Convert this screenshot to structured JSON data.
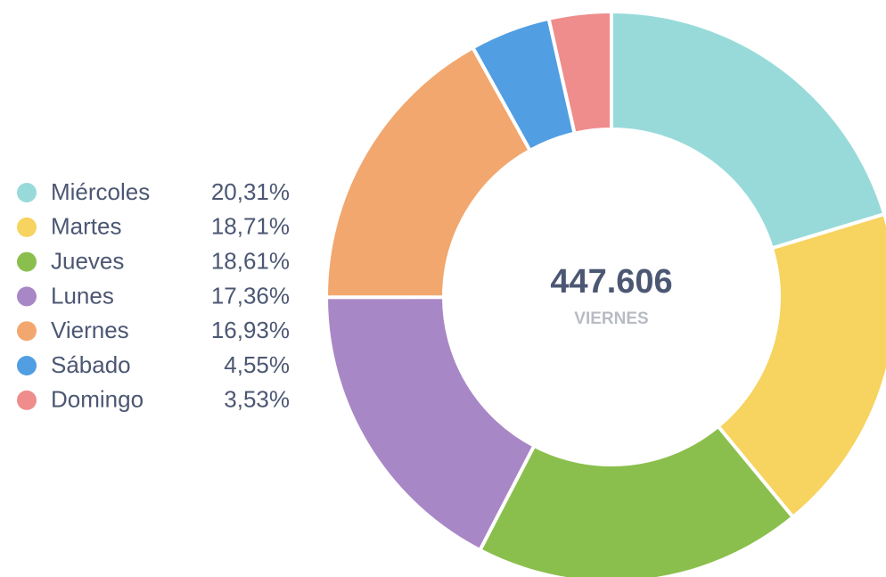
{
  "chart_data": {
    "type": "pie",
    "donut": true,
    "categories": [
      "Miércoles",
      "Martes",
      "Jueves",
      "Lunes",
      "Viernes",
      "Sábado",
      "Domingo"
    ],
    "values": [
      20.31,
      18.71,
      18.61,
      17.36,
      16.93,
      4.55,
      3.53
    ],
    "value_labels": [
      "20,31%",
      "18,71%",
      "18,61%",
      "17,36%",
      "16,93%",
      "4,55%",
      "3,53%"
    ],
    "colors": [
      "#98dada",
      "#f7d35f",
      "#8bbf4d",
      "#a887c6",
      "#f2a76e",
      "#519ee3",
      "#ef8c8c"
    ],
    "center_value": "447.606",
    "center_caption": "VIERNES",
    "legend": "left"
  }
}
